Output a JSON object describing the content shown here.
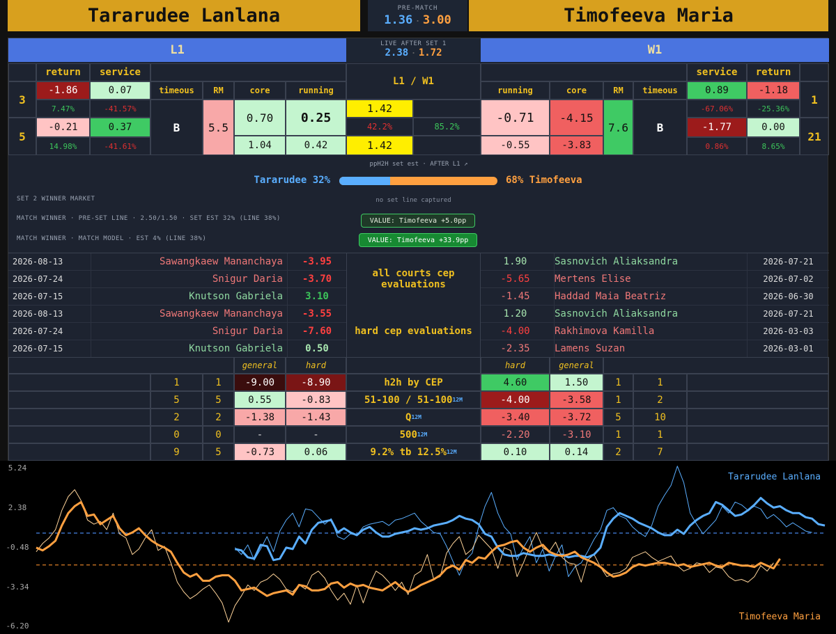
{
  "header": {
    "player_left": "Tararudee Lanlana",
    "player_right": "Timofeeva Maria",
    "prematch_label": "PRE-MATCH",
    "prematch_left": "1.36",
    "prematch_right": "3.00",
    "separator": "·"
  },
  "live": {
    "label": "LIVE AFTER SET 1",
    "left": "2.38",
    "right": "1.72",
    "banner_left": "L1",
    "banner_right": "W1",
    "center_title": "L1 / W1"
  },
  "stats_left": {
    "return_label": "return",
    "service_label": "service",
    "timeous_label": "timeous",
    "rm_label": "RM",
    "core_label": "core",
    "running_label": "running",
    "rank1": "3",
    "rank2": "5",
    "ret1": "-1.86",
    "ser1": "0.07",
    "ret1p": "7.47%",
    "ser1p": "-41.57%",
    "ret2": "-0.21",
    "ser2": "0.37",
    "ret2p": "14.98%",
    "ser2p": "-41.61%",
    "timeous": "B",
    "rm": "5.5",
    "core1": "0.70",
    "run1": "0.25",
    "core2": "1.04",
    "run2": "0.42"
  },
  "stats_center": {
    "v1": "1.42",
    "p1": "42.2%",
    "p2": "85.2%",
    "v2": "1.42"
  },
  "stats_right": {
    "return_label": "return",
    "service_label": "service",
    "timeous_label": "timeous",
    "rm_label": "RM",
    "core_label": "core",
    "running_label": "running",
    "rank1": "1",
    "rank2": "21",
    "ser1": "0.89",
    "ret1": "-1.18",
    "ser1p": "-67.06%",
    "ret1p": "-25.36%",
    "ser2": "-1.77",
    "ret2": "0.00",
    "ser2p": "0.86%",
    "ret2p": "8.65%",
    "timeous": "B",
    "rm": "7.6",
    "run1": "-0.71",
    "core1": "-4.15",
    "run2": "-0.55",
    "core2": "-3.83"
  },
  "set_est": {
    "label": "ppH2H set est · AFTER L1 ↗",
    "left": "Tararudee 32%",
    "right": "68% Timofeeva",
    "left_pct": 32
  },
  "markets": {
    "m1": "SET 2 WINNER MARKET",
    "m1_note": "no set line captured",
    "m2": "MATCH WINNER · PRE-SET LINE · 2.50/1.50 · SET EST 32% (LINE 38%)",
    "m2_value": "VALUE: Timofeeva +5.0pp",
    "m3": "MATCH WINNER · MATCH MODEL · EST 4% (LINE 38%)",
    "m3_value": "VALUE: Timofeeva +33.9pp"
  },
  "history": {
    "mid1": "all courts cep evaluations",
    "mid2": "hard cep evaluations",
    "left": [
      {
        "date": "2026-08-13",
        "name": "Sawangkaew Mananchaya",
        "val": "-3.95"
      },
      {
        "date": "2026-07-24",
        "name": "Snigur Daria",
        "val": "-3.70"
      },
      {
        "date": "2026-07-15",
        "name": "Knutson Gabriela",
        "val": "3.10"
      },
      {
        "date": "2026-08-13",
        "name": "Sawangkaew Mananchaya",
        "val": "-3.55"
      },
      {
        "date": "2026-07-24",
        "name": "Snigur Daria",
        "val": "-7.60"
      },
      {
        "date": "2026-07-15",
        "name": "Knutson Gabriela",
        "val": "0.50"
      }
    ],
    "right": [
      {
        "val": "1.90",
        "name": "Sasnovich Aliaksandra",
        "date": "2026-07-21"
      },
      {
        "val": "-5.65",
        "name": "Mertens Elise",
        "date": "2026-07-02"
      },
      {
        "val": "-1.45",
        "name": "Haddad Maia Beatriz",
        "date": "2026-06-30"
      },
      {
        "val": "1.20",
        "name": "Sasnovich Aliaksandra",
        "date": "2026-07-21"
      },
      {
        "val": "-4.00",
        "name": "Rakhimova Kamilla",
        "date": "2026-03-03"
      },
      {
        "val": "-2.35",
        "name": "Lamens Suzan",
        "date": "2026-03-01"
      }
    ]
  },
  "h2h": {
    "general": "general",
    "hard": "hard",
    "rows": [
      {
        "la": "1",
        "lb": "1",
        "lg": "-9.00",
        "lh": "-8.90",
        "label": "h2h by CEP",
        "tag": "",
        "rh": "4.60",
        "rg": "1.50",
        "ra": "1",
        "rb": "1"
      },
      {
        "la": "5",
        "lb": "5",
        "lg": "0.55",
        "lh": "-0.83",
        "label": "51-100 / 51-100",
        "tag": "12M",
        "rh": "-4.00",
        "rg": "-3.58",
        "ra": "1",
        "rb": "2"
      },
      {
        "la": "2",
        "lb": "2",
        "lg": "-1.38",
        "lh": "-1.43",
        "label": "Q",
        "tag": "12M",
        "rh": "-3.40",
        "rg": "-3.72",
        "ra": "5",
        "rb": "10"
      },
      {
        "la": "0",
        "lb": "0",
        "lg": "-",
        "lh": "-",
        "label": "500",
        "tag": "12M",
        "rh": "-2.20",
        "rg": "-3.10",
        "ra": "1",
        "rb": "1"
      },
      {
        "la": "9",
        "lb": "5",
        "lg": "-0.73",
        "lh": "0.06",
        "label": "9.2% tb 12.5%",
        "tag": "12M",
        "rh": "0.10",
        "rg": "0.14",
        "ra": "2",
        "rb": "7"
      }
    ]
  },
  "chart_data": {
    "type": "line",
    "legend_top": "Tararudee Lanlana",
    "legend_bottom": "Timofeeva Maria",
    "yticks": [
      "5.24",
      "2.38",
      "-0.48",
      "-3.34",
      "-6.20"
    ],
    "ylim": [
      -6.2,
      5.24
    ],
    "ref_blue": 0.55,
    "ref_orange": -1.75,
    "colors": {
      "blue": "#5aaeff",
      "orange": "#ffa040",
      "orange_thin": "#ffd49a"
    },
    "series": [
      {
        "name": "Tararudee Lanlana",
        "style": "thick",
        "color": "#5aaeff",
        "x_start": 31,
        "values": [
          -0.6,
          -0.7,
          -1.2,
          -1.3,
          -0.3,
          -0.4,
          -1.4,
          -1.3,
          -0.5,
          -0.6,
          0.3,
          -0.2,
          0.8,
          1.3,
          1.4,
          1.5,
          0.6,
          0.9,
          0.6,
          0.4,
          0.8,
          1.0,
          0.6,
          0.3,
          0.3,
          0.5,
          0.6,
          0.7,
          0.9,
          0.8,
          0.9,
          1.1,
          1.2,
          1.3,
          1.5,
          1.8,
          1.6,
          1.5,
          1.2,
          0.5,
          0.3,
          -0.5,
          -1.0,
          -1.1,
          -1.1,
          -0.9,
          -1.0,
          -1.1,
          -1.1,
          -1.0,
          -1.1,
          -1.0,
          -1.2,
          -1.1,
          -1.1,
          -1.2,
          -1.0,
          -0.5,
          1.0,
          1.6,
          2.0,
          1.8,
          1.6,
          1.3,
          1.1,
          0.9,
          0.6,
          0.4,
          0.4,
          0.8,
          0.5,
          1.1,
          1.5,
          1.8,
          2.0,
          2.8,
          2.6,
          2.2,
          1.8,
          1.9,
          2.2,
          2.6,
          3.1,
          2.7,
          2.4,
          2.5,
          2.2,
          2.0,
          2.0,
          1.7,
          1.6,
          1.2,
          1.1
        ]
      },
      {
        "name": "Tararudee Lanlana thin",
        "style": "thin",
        "color": "#5aaeff",
        "x_start": 31,
        "values": [
          -0.5,
          -1.0,
          -0.3,
          -1.4,
          -0.6,
          0.3,
          -0.8,
          0.7,
          1.5,
          2.0,
          1.0,
          2.3,
          2.2,
          1.7,
          1.2,
          1.6,
          0.3,
          0.1,
          0.5,
          0.4,
          1.0,
          1.2,
          1.3,
          1.4,
          1.1,
          1.5,
          1.6,
          1.8,
          2.0,
          1.4,
          1.0,
          0.6,
          0.5,
          -0.4,
          -1.5,
          -2.5,
          -1.4,
          -0.9,
          1.0,
          2.5,
          3.5,
          2.0,
          1.0,
          0.5,
          -1.4,
          -0.5,
          0.3,
          -1.6,
          -0.6,
          -2.2,
          -1.1,
          -0.3,
          -2.6,
          -1.9,
          -1.6,
          -0.8,
          0.1,
          0.8,
          2.2,
          2.4,
          1.8,
          1.6,
          1.0,
          0.6,
          0.3,
          1.1,
          2.5,
          3.3,
          4.0,
          5.4,
          4.2,
          2.0,
          1.2,
          0.5,
          1.0,
          1.5,
          2.5,
          2.0,
          2.8,
          2.6,
          2.2,
          2.5,
          2.3,
          1.6,
          1.9,
          1.5,
          1.0,
          1.3,
          1.0,
          0.7,
          0.6
        ]
      },
      {
        "name": "Timofeeva Maria",
        "style": "thick",
        "color": "#ffa040",
        "x_start": 0,
        "values": [
          -0.5,
          -0.7,
          -0.4,
          0.0,
          1.1,
          2.0,
          2.5,
          2.8,
          1.8,
          1.9,
          1.2,
          1.5,
          1.8,
          0.9,
          0.4,
          0.6,
          0.9,
          0.4,
          0.0,
          -0.3,
          -0.5,
          -0.8,
          -1.6,
          -2.3,
          -2.6,
          -2.4,
          -2.9,
          -2.9,
          -2.6,
          -2.5,
          -2.5,
          -2.9,
          -3.6,
          -3.5,
          -3.4,
          -3.7,
          -4.0,
          -3.8,
          -3.7,
          -3.6,
          -3.9,
          -3.2,
          -3.3,
          -3.6,
          -3.6,
          -3.5,
          -3.1,
          -3.0,
          -3.4,
          -3.1,
          -3.3,
          -3.2,
          -3.4,
          -3.5,
          -3.6,
          -3.3,
          -3.0,
          -3.4,
          -3.7,
          -3.5,
          -3.2,
          -3.0,
          -2.8,
          -2.5,
          -2.0,
          -1.8,
          -2.1,
          -1.4,
          -1.6,
          -1.2,
          -1.3,
          -0.8,
          -0.4,
          -0.3,
          -0.1,
          0.0,
          -0.5,
          -0.8,
          -0.5,
          -0.3,
          -0.8,
          -1.0,
          -1.1,
          -1.0,
          -0.8,
          -1.2,
          -1.4,
          -1.6,
          -1.9,
          -2.3,
          -2.6,
          -2.5,
          -2.3,
          -1.9,
          -1.7,
          -1.8,
          -1.7,
          -1.6,
          -1.6,
          -1.7,
          -1.8,
          -1.7,
          -1.9,
          -1.8,
          -1.7,
          -1.6,
          -1.8,
          -1.9,
          -1.6,
          -1.7,
          -1.8,
          -1.8,
          -1.9,
          -1.6,
          -1.8,
          -2.0,
          -1.3
        ]
      },
      {
        "name": "Timofeeva Maria thin",
        "style": "thin",
        "color": "#ffd49a",
        "x_start": 0,
        "values": [
          -0.8,
          -0.2,
          0.2,
          0.8,
          2.2,
          3.2,
          3.7,
          2.9,
          1.5,
          1.2,
          1.4,
          0.8,
          2.0,
          0.5,
          0.2,
          -1.0,
          -0.6,
          0.2,
          0.8,
          -0.7,
          -0.4,
          -1.6,
          -3.0,
          -3.7,
          -4.2,
          -3.9,
          -3.5,
          -3.2,
          -3.8,
          -4.5,
          -5.9,
          -4.7,
          -4.0,
          -3.2,
          -3.6,
          -3.0,
          -2.8,
          -2.4,
          -2.8,
          -3.5,
          -3.7,
          -3.2,
          -3.5,
          -2.5,
          -2.2,
          -2.7,
          -3.6,
          -4.3,
          -3.8,
          -4.6,
          -3.2,
          -4.5,
          -3.2,
          -2.2,
          -2.5,
          -3.0,
          -3.6,
          -3.0,
          -3.9,
          -2.5,
          -2.2,
          -1.0,
          -2.8,
          -2.6,
          -0.9,
          -0.2,
          0.3,
          -1.0,
          -0.6,
          0.4,
          -0.1,
          -0.6,
          -2.0,
          -0.5,
          -0.7,
          -2.6,
          -1.6,
          -0.4,
          0.6,
          -0.5,
          -0.8,
          -0.1,
          -1.2,
          -1.6,
          -1.7,
          -3.0,
          -1.4,
          -1.0,
          -1.9,
          -2.6,
          -2.4,
          -2.3,
          -2.0,
          -1.2,
          -1.0,
          -0.8,
          -1.2,
          -1.5,
          -1.3,
          -1.1,
          -1.8,
          -2.2,
          -2.0,
          -1.6,
          -1.7,
          -2.3,
          -1.9,
          -2.0,
          -2.6,
          -2.9,
          -2.8,
          -3.0,
          -2.6,
          -1.8,
          -2.2,
          -1.6
        ]
      }
    ]
  }
}
